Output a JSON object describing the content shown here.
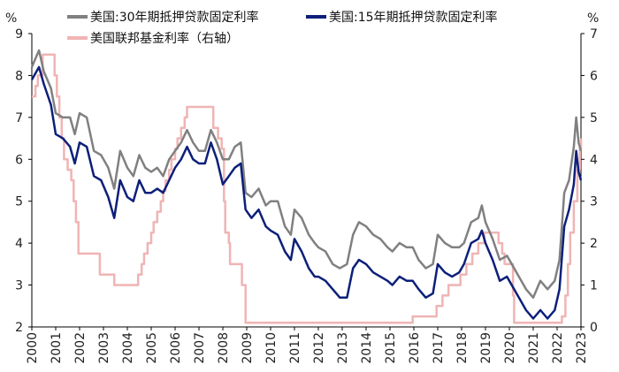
{
  "chart_data": {
    "type": "line",
    "title": "",
    "left_axis": {
      "unit": "%",
      "ylim": [
        2,
        9
      ],
      "ticks": [
        "2",
        "3",
        "4",
        "5",
        "6",
        "7",
        "8",
        "9"
      ]
    },
    "right_axis": {
      "unit": "%",
      "ylim": [
        0,
        7
      ],
      "ticks": [
        "0",
        "1",
        "2",
        "3",
        "4",
        "5",
        "6",
        "7"
      ]
    },
    "x_axis": {
      "xlim": [
        2000,
        2023
      ],
      "tick_labels": [
        "2000",
        "2001",
        "2002",
        "2003",
        "2004",
        "2005",
        "2006",
        "2007",
        "2008",
        "2009",
        "2010",
        "2011",
        "2012",
        "2013",
        "2014",
        "2015",
        "2016",
        "2017",
        "2018",
        "2019",
        "2020",
        "2021",
        "2022",
        "2023"
      ]
    },
    "legend_placement": "top",
    "series": [
      {
        "name": "美国:30年期抵押贷款固定利率",
        "axis": "left",
        "color": "#808080",
        "x": [
          2000.0,
          2000.3,
          2000.5,
          2000.8,
          2001.0,
          2001.3,
          2001.6,
          2001.8,
          2002.0,
          2002.3,
          2002.6,
          2002.9,
          2003.2,
          2003.45,
          2003.7,
          2004.0,
          2004.25,
          2004.5,
          2004.75,
          2005.0,
          2005.25,
          2005.5,
          2005.75,
          2006.0,
          2006.25,
          2006.5,
          2006.75,
          2007.0,
          2007.25,
          2007.5,
          2007.75,
          2008.0,
          2008.25,
          2008.5,
          2008.75,
          2008.95,
          2009.2,
          2009.5,
          2009.8,
          2010.0,
          2010.3,
          2010.6,
          2010.85,
          2011.0,
          2011.3,
          2011.6,
          2011.85,
          2012.0,
          2012.3,
          2012.6,
          2012.9,
          2013.2,
          2013.45,
          2013.7,
          2014.0,
          2014.3,
          2014.6,
          2014.9,
          2015.1,
          2015.4,
          2015.7,
          2015.95,
          2016.2,
          2016.5,
          2016.8,
          2017.0,
          2017.3,
          2017.6,
          2017.9,
          2018.1,
          2018.4,
          2018.7,
          2018.85,
          2019.0,
          2019.3,
          2019.6,
          2019.9,
          2020.1,
          2020.4,
          2020.7,
          2021.0,
          2021.3,
          2021.6,
          2021.9,
          2022.1,
          2022.3,
          2022.5,
          2022.7,
          2022.8,
          2022.9,
          2023.0
        ],
        "values": [
          8.2,
          8.6,
          8.1,
          7.7,
          7.1,
          7.0,
          7.0,
          6.6,
          7.1,
          7.0,
          6.2,
          6.1,
          5.8,
          5.3,
          6.2,
          5.8,
          5.6,
          6.1,
          5.8,
          5.7,
          5.8,
          5.6,
          6.0,
          6.2,
          6.4,
          6.7,
          6.4,
          6.2,
          6.2,
          6.7,
          6.4,
          6.0,
          6.0,
          6.3,
          6.4,
          5.2,
          5.1,
          5.3,
          4.9,
          5.0,
          5.0,
          4.4,
          4.2,
          4.8,
          4.6,
          4.2,
          4.0,
          3.9,
          3.8,
          3.5,
          3.4,
          3.5,
          4.2,
          4.5,
          4.4,
          4.2,
          4.1,
          3.9,
          3.8,
          4.0,
          3.9,
          3.9,
          3.6,
          3.4,
          3.5,
          4.2,
          4.0,
          3.9,
          3.9,
          4.0,
          4.5,
          4.6,
          4.9,
          4.5,
          4.1,
          3.6,
          3.7,
          3.5,
          3.2,
          2.9,
          2.7,
          3.1,
          2.9,
          3.1,
          3.6,
          5.2,
          5.5,
          6.3,
          7.0,
          6.4,
          6.2
        ]
      },
      {
        "name": "美国:15年期抵押贷款固定利率",
        "axis": "left",
        "color": "#0c1f7a",
        "x": [
          2000.0,
          2000.3,
          2000.5,
          2000.8,
          2001.0,
          2001.3,
          2001.6,
          2001.8,
          2002.0,
          2002.3,
          2002.6,
          2002.9,
          2003.2,
          2003.45,
          2003.7,
          2004.0,
          2004.25,
          2004.5,
          2004.75,
          2005.0,
          2005.25,
          2005.5,
          2005.75,
          2006.0,
          2006.25,
          2006.5,
          2006.75,
          2007.0,
          2007.25,
          2007.5,
          2007.75,
          2008.0,
          2008.25,
          2008.5,
          2008.75,
          2008.95,
          2009.2,
          2009.5,
          2009.8,
          2010.0,
          2010.3,
          2010.6,
          2010.85,
          2011.0,
          2011.3,
          2011.6,
          2011.85,
          2012.0,
          2012.3,
          2012.6,
          2012.9,
          2013.2,
          2013.45,
          2013.7,
          2014.0,
          2014.3,
          2014.6,
          2014.9,
          2015.1,
          2015.4,
          2015.7,
          2015.95,
          2016.2,
          2016.5,
          2016.8,
          2017.0,
          2017.3,
          2017.6,
          2017.9,
          2018.1,
          2018.4,
          2018.7,
          2018.85,
          2019.0,
          2019.3,
          2019.6,
          2019.9,
          2020.1,
          2020.4,
          2020.7,
          2021.0,
          2021.3,
          2021.6,
          2021.9,
          2022.1,
          2022.3,
          2022.5,
          2022.7,
          2022.8,
          2022.9,
          2023.0
        ],
        "values": [
          7.9,
          8.2,
          7.8,
          7.3,
          6.6,
          6.5,
          6.3,
          5.9,
          6.4,
          6.3,
          5.6,
          5.5,
          5.1,
          4.6,
          5.5,
          5.1,
          5.0,
          5.5,
          5.2,
          5.2,
          5.3,
          5.2,
          5.5,
          5.8,
          6.0,
          6.3,
          6.0,
          5.9,
          5.9,
          6.4,
          6.0,
          5.4,
          5.6,
          5.8,
          5.9,
          4.8,
          4.6,
          4.8,
          4.4,
          4.3,
          4.2,
          3.8,
          3.6,
          4.1,
          3.8,
          3.4,
          3.2,
          3.2,
          3.1,
          2.9,
          2.7,
          2.7,
          3.4,
          3.6,
          3.5,
          3.3,
          3.2,
          3.1,
          3.0,
          3.2,
          3.1,
          3.1,
          2.9,
          2.7,
          2.8,
          3.5,
          3.3,
          3.2,
          3.3,
          3.5,
          4.0,
          4.1,
          4.3,
          4.0,
          3.6,
          3.1,
          3.2,
          3.0,
          2.7,
          2.4,
          2.2,
          2.4,
          2.2,
          2.4,
          2.9,
          4.4,
          4.8,
          5.4,
          6.2,
          5.7,
          5.5
        ]
      },
      {
        "name": "美国联邦基金利率（右轴）",
        "axis": "right",
        "color": "#f0b4b4",
        "step": true,
        "x": [
          2000.0,
          2000.15,
          2000.25,
          2000.45,
          2000.95,
          2001.05,
          2001.15,
          2001.25,
          2001.35,
          2001.5,
          2001.65,
          2001.75,
          2001.85,
          2001.95,
          2002.85,
          2003.45,
          2004.45,
          2004.6,
          2004.7,
          2004.85,
          2005.0,
          2005.1,
          2005.25,
          2005.4,
          2005.5,
          2005.6,
          2005.75,
          2005.85,
          2006.0,
          2006.1,
          2006.25,
          2006.4,
          2006.5,
          2007.6,
          2007.8,
          2007.95,
          2008.05,
          2008.1,
          2008.25,
          2008.3,
          2008.8,
          2008.95,
          2015.95,
          2016.95,
          2017.2,
          2017.45,
          2017.95,
          2018.2,
          2018.45,
          2018.7,
          2018.95,
          2019.55,
          2019.7,
          2019.8,
          2020.15,
          2020.2,
          2022.2,
          2022.35,
          2022.45,
          2022.55,
          2022.7,
          2022.85,
          2022.95,
          2023.0
        ],
        "values": [
          5.5,
          5.75,
          6.0,
          6.5,
          6.0,
          5.5,
          5.0,
          4.5,
          4.0,
          3.75,
          3.5,
          3.0,
          2.5,
          1.75,
          1.25,
          1.0,
          1.25,
          1.5,
          1.75,
          2.0,
          2.25,
          2.5,
          2.75,
          3.0,
          3.25,
          3.5,
          3.75,
          4.0,
          4.25,
          4.5,
          4.75,
          5.0,
          5.25,
          4.75,
          4.5,
          4.25,
          3.0,
          2.25,
          2.0,
          1.5,
          1.0,
          0.1,
          0.25,
          0.5,
          0.75,
          1.0,
          1.25,
          1.5,
          1.75,
          2.0,
          2.25,
          2.0,
          1.75,
          1.5,
          0.75,
          0.1,
          0.25,
          0.75,
          1.5,
          2.25,
          3.0,
          3.75,
          4.25,
          4.5
        ]
      }
    ]
  }
}
